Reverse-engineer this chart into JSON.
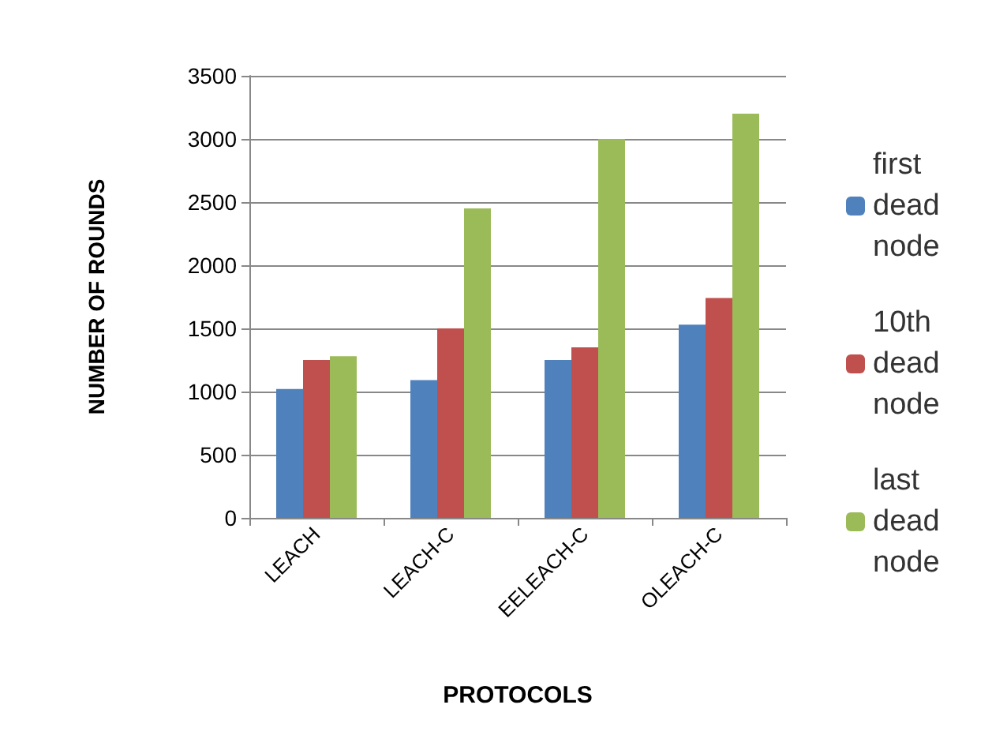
{
  "chart_data": {
    "type": "bar",
    "xlabel": "PROTOCOLS",
    "ylabel": "NUMBER OF ROUNDS",
    "categories": [
      "LEACH",
      "LEACH-C",
      "EELEACH-C",
      "OLEACH-C"
    ],
    "series": [
      {
        "name": "first dead node",
        "color": "#4f81bd",
        "values": [
          1020,
          1090,
          1250,
          1530
        ]
      },
      {
        "name": "10th dead node",
        "color": "#c0504d",
        "values": [
          1250,
          1500,
          1350,
          1740
        ]
      },
      {
        "name": "last dead node",
        "color": "#9bbb59",
        "values": [
          1280,
          2450,
          3000,
          3200
        ]
      }
    ],
    "ylim": [
      0,
      3500
    ],
    "yticks": [
      0,
      500,
      1000,
      1500,
      2000,
      2500,
      3000,
      3500
    ],
    "grid": "y",
    "legend": "right"
  }
}
